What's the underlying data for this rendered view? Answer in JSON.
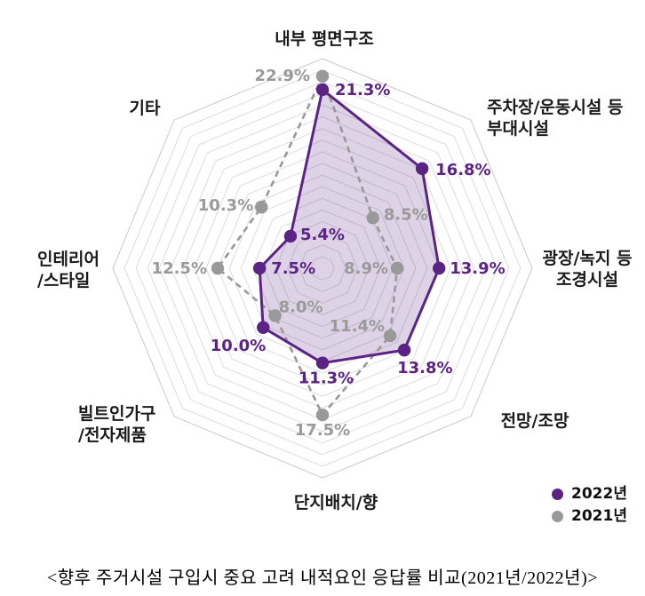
{
  "chart_data": {
    "type": "radar",
    "axis_max": 25,
    "grid": {
      "rings": 18,
      "shape": "octagon",
      "color": "#dcdcdc",
      "outer_color": "#c9c9c9"
    },
    "categories": [
      {
        "label": "내부 평면구조",
        "lines": [
          "내부 평면구조"
        ]
      },
      {
        "label": "주차장/운동시설 등 부대시설",
        "lines": [
          "주차장/운동시설 등",
          "부대시설"
        ]
      },
      {
        "label": "광장/녹지 등 조경시설",
        "lines": [
          "광장/녹지 등",
          "조경시설"
        ]
      },
      {
        "label": "전망/조망",
        "lines": [
          "전망/조망"
        ]
      },
      {
        "label": "단지배치/향",
        "lines": [
          "단지배치/향"
        ]
      },
      {
        "label": "빌트인가구/전자제품",
        "lines": [
          "빌트인가구",
          "/전자제품"
        ]
      },
      {
        "label": "인테리어/스타일",
        "lines": [
          "인테리어",
          "/스타일"
        ]
      },
      {
        "label": "기타",
        "lines": [
          "기타"
        ]
      }
    ],
    "series": [
      {
        "name": "2022년",
        "color": "#5b2383",
        "label_color": "#5b2383",
        "line_style": "solid",
        "fill": "rgba(91,35,131,0.2)",
        "values": [
          21.3,
          16.8,
          13.9,
          13.8,
          11.3,
          10.0,
          7.5,
          5.4
        ]
      },
      {
        "name": "2021년",
        "color": "#999999",
        "label_color": "#9a9a9a",
        "line_style": "dashed",
        "fill": "none",
        "values": [
          22.9,
          8.5,
          8.9,
          11.4,
          17.5,
          8.0,
          12.5,
          10.3
        ]
      }
    ],
    "value_suffix": "%",
    "legend_position": "bottom-right"
  },
  "legend": {
    "items": [
      {
        "label": "2022년",
        "color": "#5b2383"
      },
      {
        "label": "2021년",
        "color": "#999999"
      }
    ]
  },
  "caption": "<향후 주거시설 구입시 중요 고려 내적요인 응답률 비교(2021년/2022년)>"
}
